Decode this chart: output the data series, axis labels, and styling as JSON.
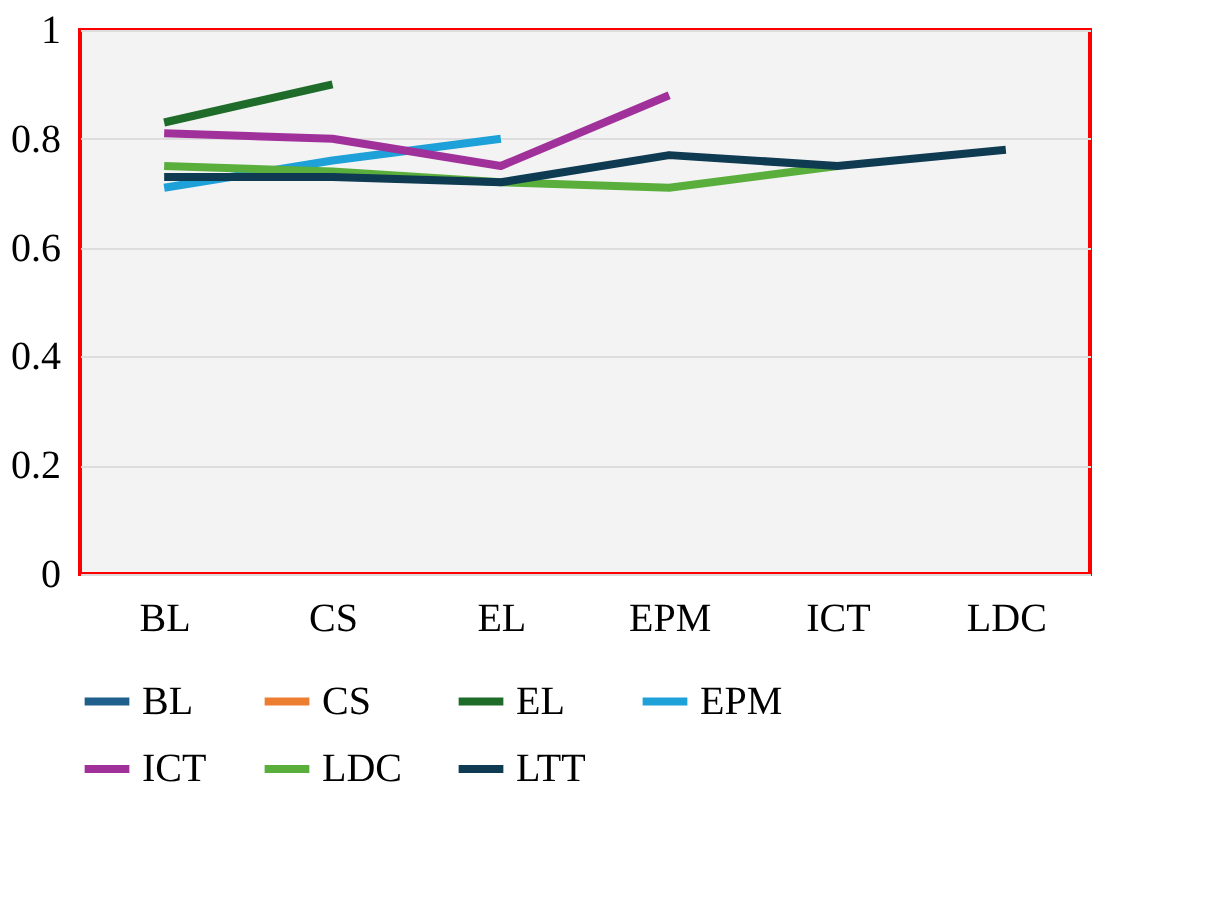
{
  "chart_data": {
    "type": "line",
    "categories": [
      "BL",
      "CS",
      "EL",
      "EPM",
      "ICT",
      "LDC"
    ],
    "ylim": [
      0,
      1
    ],
    "yticks": [
      0,
      0.2,
      0.4,
      0.6,
      0.8,
      1
    ],
    "grid": "y",
    "legend": "bottom",
    "marker": "none",
    "line_style": "solid",
    "series": [
      {
        "name": "BL",
        "color": "#1f5f8b",
        "values": [
          null,
          null,
          null,
          null,
          null,
          null
        ]
      },
      {
        "name": "CS",
        "color": "#ed7d31",
        "values": [
          null,
          null,
          null,
          null,
          null,
          null
        ]
      },
      {
        "name": "EL",
        "color": "#1e6b2a",
        "values": [
          0.83,
          0.9,
          null,
          null,
          null,
          null
        ]
      },
      {
        "name": "EPM",
        "color": "#1ea0d8",
        "values": [
          0.71,
          0.76,
          0.8,
          null,
          null,
          null
        ]
      },
      {
        "name": "ICT",
        "color": "#a0309a",
        "values": [
          0.81,
          0.8,
          0.75,
          0.88,
          null,
          null
        ]
      },
      {
        "name": "LDC",
        "color": "#5aae3c",
        "values": [
          0.75,
          0.74,
          0.72,
          0.71,
          0.75,
          null
        ]
      },
      {
        "name": "LTT",
        "color": "#0e3a52",
        "values": [
          0.73,
          0.73,
          0.72,
          0.77,
          0.75,
          0.78
        ]
      }
    ]
  }
}
